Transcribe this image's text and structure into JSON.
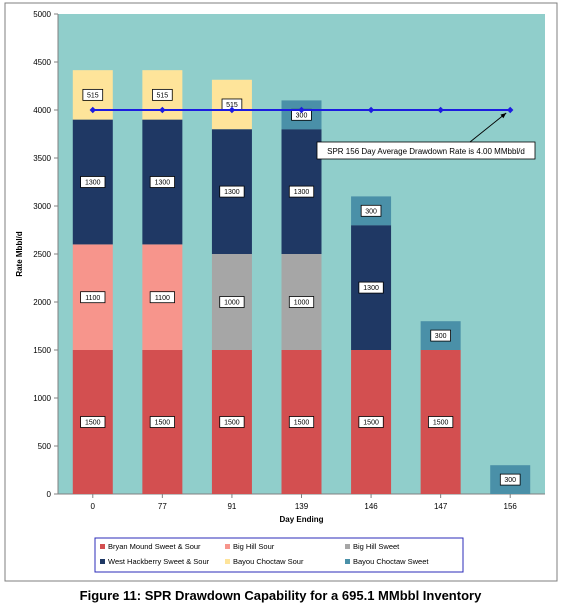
{
  "caption": "Figure 11: SPR Drawdown Capability for a 695.1 MMbbl Inventory",
  "chart_data": {
    "type": "bar",
    "stacked": true,
    "title": "",
    "xlabel": "Day Ending",
    "ylabel": "Rate Mbbl/d",
    "ylim": [
      0,
      5000
    ],
    "yticks": [
      0,
      500,
      1000,
      1500,
      2000,
      2500,
      3000,
      3500,
      4000,
      4500,
      5000
    ],
    "categories": [
      "0",
      "77",
      "91",
      "139",
      "146",
      "147",
      "156"
    ],
    "grid": false,
    "legend_position": "bottom",
    "plot_background": "#90CECB",
    "series": [
      {
        "name": "Bryan Mound Sweet & Sour",
        "color": "#D34F50",
        "values": [
          1500,
          1500,
          1500,
          1500,
          1500,
          1500,
          0
        ]
      },
      {
        "name": "Big Hill Sour",
        "color": "#F7958C",
        "values": [
          1100,
          1100,
          0,
          0,
          0,
          0,
          0
        ]
      },
      {
        "name": "Big Hill Sweet",
        "color": "#A6A6A6",
        "values": [
          0,
          0,
          1000,
          1000,
          0,
          0,
          0
        ]
      },
      {
        "name": "West Hackberry Sweet & Sour",
        "color": "#1F3864",
        "values": [
          1300,
          1300,
          1300,
          1300,
          1300,
          0,
          0
        ]
      },
      {
        "name": "Bayou Choctaw Sour",
        "color": "#FEE49A",
        "values": [
          515,
          515,
          515,
          0,
          0,
          0,
          0
        ]
      },
      {
        "name": "Bayou Choctaw Sweet",
        "color": "#4A90A8",
        "values": [
          0,
          0,
          0,
          300,
          300,
          300,
          300
        ]
      }
    ],
    "legend_order": [
      "Bryan Mound Sweet & Sour",
      "Big Hill Sour",
      "Big Hill Sweet",
      "West Hackberry Sweet & Sour",
      "Bayou Choctaw Sour",
      "Bayou Choctaw Sweet"
    ],
    "average_line": {
      "value": 4000,
      "color": "#1C1CE0",
      "label": "SPR 156 Day Average Drawdown Rate is 4.00 MMbbl/d"
    }
  }
}
